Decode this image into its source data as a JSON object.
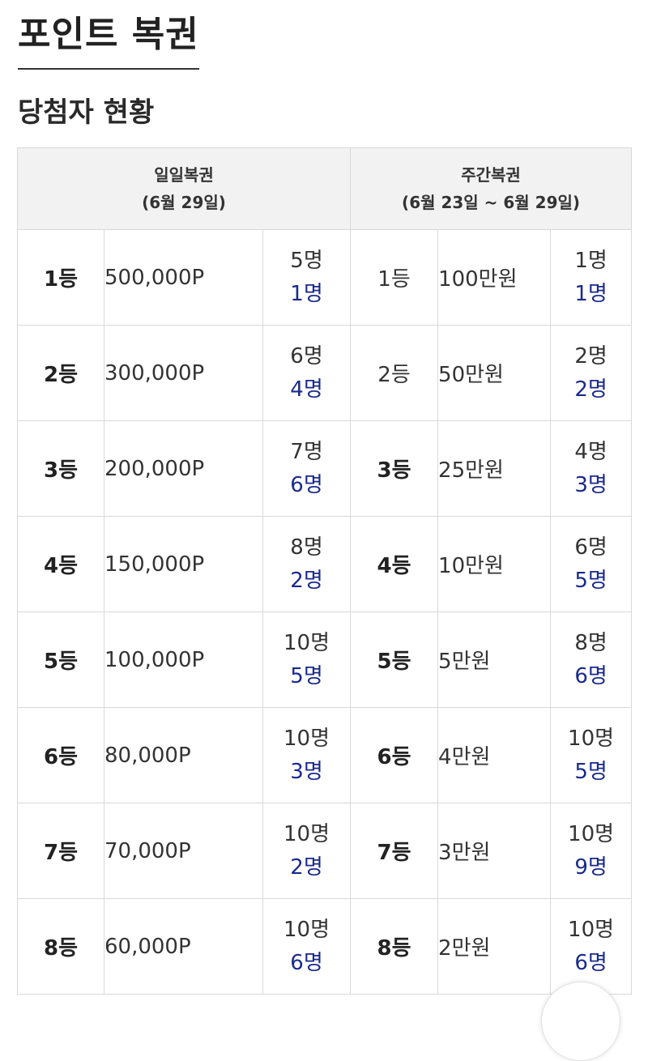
{
  "page_title": "포인트 복권",
  "section_title": "당첨자 현황",
  "daily": {
    "name": "일일복권",
    "period": "(6월 29일)"
  },
  "weekly": {
    "name": "주간복권",
    "period": "(6월 23일 ~ 6월 29일)"
  },
  "rows": [
    {
      "daily": {
        "rank": "1등",
        "prize": "500,000P",
        "total": "5명",
        "winners": "1명"
      },
      "weekly": {
        "rank": "1등",
        "rank_bold": false,
        "prize": "100만원",
        "total": "1명",
        "winners": "1명"
      }
    },
    {
      "daily": {
        "rank": "2등",
        "prize": "300,000P",
        "total": "6명",
        "winners": "4명"
      },
      "weekly": {
        "rank": "2등",
        "rank_bold": false,
        "prize": "50만원",
        "total": "2명",
        "winners": "2명"
      }
    },
    {
      "daily": {
        "rank": "3등",
        "prize": "200,000P",
        "total": "7명",
        "winners": "6명"
      },
      "weekly": {
        "rank": "3등",
        "rank_bold": true,
        "prize": "25만원",
        "total": "4명",
        "winners": "3명"
      }
    },
    {
      "daily": {
        "rank": "4등",
        "prize": "150,000P",
        "total": "8명",
        "winners": "2명"
      },
      "weekly": {
        "rank": "4등",
        "rank_bold": true,
        "prize": "10만원",
        "total": "6명",
        "winners": "5명"
      }
    },
    {
      "daily": {
        "rank": "5등",
        "prize": "100,000P",
        "total": "10명",
        "winners": "5명"
      },
      "weekly": {
        "rank": "5등",
        "rank_bold": true,
        "prize": "5만원",
        "total": "8명",
        "winners": "6명"
      }
    },
    {
      "daily": {
        "rank": "6등",
        "prize": "80,000P",
        "total": "10명",
        "winners": "3명"
      },
      "weekly": {
        "rank": "6등",
        "rank_bold": true,
        "prize": "4만원",
        "total": "10명",
        "winners": "5명"
      }
    },
    {
      "daily": {
        "rank": "7등",
        "prize": "70,000P",
        "total": "10명",
        "winners": "2명"
      },
      "weekly": {
        "rank": "7등",
        "rank_bold": true,
        "prize": "3만원",
        "total": "10명",
        "winners": "9명"
      }
    },
    {
      "daily": {
        "rank": "8등",
        "prize": "60,000P",
        "total": "10명",
        "winners": "6명"
      },
      "weekly": {
        "rank": "8등",
        "rank_bold": true,
        "prize": "2만원",
        "total": "10명",
        "winners": "6명"
      }
    }
  ],
  "colors": {
    "winner_count": "#1a2a8c",
    "header_bg": "#f2f2f2",
    "border": "#d9d9d9"
  }
}
